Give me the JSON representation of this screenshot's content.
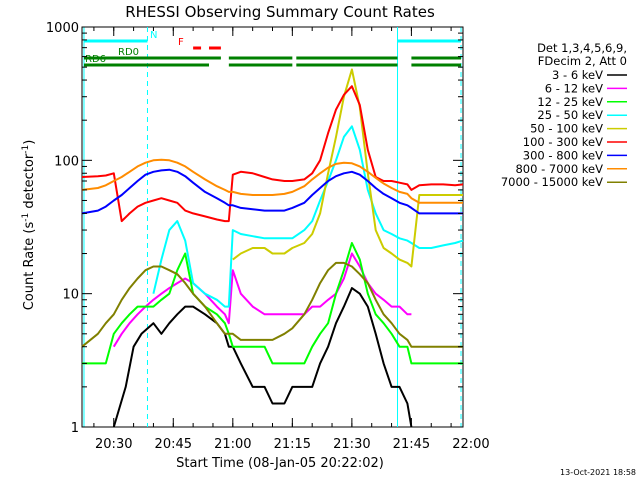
{
  "chart_data": {
    "type": "line",
    "title": "RHESSI Observing Summary Count Rates",
    "xlabel": "Start Time (08-Jan-05 20:22:02)",
    "ylabel_main": "Count Rate (s",
    "ylabel_sup1": "-1",
    "ylabel_mid": " detector",
    "ylabel_sup2": "-1",
    "ylabel_end": ")",
    "x_unit": "minutes after 20:00 UT",
    "xlim": [
      22.0,
      118.0
    ],
    "ylim": [
      1,
      1000
    ],
    "yscale": "log",
    "x_ticks": [
      {
        "label": "20:30",
        "x": 30
      },
      {
        "label": "20:45",
        "x": 45
      },
      {
        "label": "21:00",
        "x": 60
      },
      {
        "label": "21:15",
        "x": 75
      },
      {
        "label": "21:30",
        "x": 90
      },
      {
        "label": "21:45",
        "x": 105
      },
      {
        "label": "22:00",
        "x": 120
      }
    ],
    "y_ticks": [
      {
        "label": "1",
        "y": 1
      },
      {
        "label": "10",
        "y": 10
      },
      {
        "label": "100",
        "y": 100
      },
      {
        "label": "1000",
        "y": 1000
      }
    ],
    "legend": {
      "header1": "Det 1,3,4,5,6,9,",
      "header2": "FDecim 2, Att 0",
      "placement": "right"
    },
    "series": [
      {
        "name": "3 - 6 keV",
        "color": "#000000",
        "x": [
          22,
          26,
          28,
          30,
          33,
          35,
          37,
          40,
          42,
          44,
          46,
          48,
          50,
          53,
          56,
          58,
          59,
          60,
          62,
          65,
          68,
          70,
          73,
          75,
          78,
          80,
          82,
          84,
          86,
          88,
          90,
          92,
          94,
          96,
          98,
          100,
          102,
          104,
          105,
          107,
          110,
          113,
          116,
          118
        ],
        "y": [
          0,
          0,
          0,
          1,
          2,
          4,
          5,
          6,
          5,
          6,
          7,
          8,
          8,
          7,
          6,
          5,
          4,
          4,
          3,
          2,
          2,
          1.5,
          1.5,
          2,
          2,
          2,
          3,
          4,
          6,
          8,
          11,
          10,
          8,
          5,
          3,
          2,
          2,
          1.5,
          1,
          0,
          0,
          0,
          0,
          0
        ]
      },
      {
        "name": "6 - 12 keV",
        "color": "#ff00ff",
        "x": [
          22,
          26,
          28,
          30,
          32,
          34,
          36,
          38,
          40,
          42,
          44,
          46,
          48,
          50,
          53,
          56,
          58,
          59,
          60,
          62,
          65,
          68,
          70,
          73,
          75,
          78,
          80,
          82,
          84,
          86,
          88,
          90,
          92,
          94,
          96,
          98,
          100,
          102,
          104,
          105,
          107,
          110,
          113,
          116,
          118
        ],
        "y": [
          0,
          0,
          0,
          4,
          5,
          6,
          7,
          8,
          9,
          10,
          11,
          12,
          13,
          12,
          10,
          8,
          7,
          6,
          15,
          10,
          8,
          7,
          7,
          7,
          7,
          7,
          8,
          8,
          9,
          10,
          13,
          20,
          16,
          12,
          10,
          9,
          8,
          8,
          7,
          7,
          0,
          0,
          0,
          0,
          0
        ]
      },
      {
        "name": "12 - 25 keV",
        "color": "#00ff00",
        "x": [
          22,
          26,
          28,
          30,
          32,
          34,
          36,
          38,
          40,
          42,
          44,
          46,
          48,
          50,
          53,
          56,
          58,
          59,
          60,
          62,
          65,
          68,
          70,
          73,
          75,
          78,
          80,
          82,
          84,
          86,
          88,
          90,
          92,
          94,
          96,
          98,
          100,
          102,
          104,
          105,
          107,
          110,
          113,
          116,
          118
        ],
        "y": [
          3,
          3,
          3,
          5,
          6,
          7,
          8,
          8,
          8,
          9,
          10,
          15,
          20,
          10,
          8,
          7,
          6,
          5,
          4,
          4,
          4,
          4,
          3,
          3,
          3,
          3,
          4,
          5,
          6,
          10,
          15,
          24,
          18,
          10,
          7,
          6,
          5,
          4,
          4,
          3,
          3,
          3,
          3,
          3,
          3
        ]
      },
      {
        "name": "25 - 50 keV",
        "color": "#00ffff",
        "x": [
          22,
          26,
          28,
          30,
          32,
          34,
          36,
          38,
          40,
          42,
          44,
          46,
          48,
          50,
          53,
          56,
          58,
          59,
          60,
          62,
          65,
          68,
          70,
          73,
          75,
          78,
          80,
          82,
          84,
          86,
          88,
          90,
          92,
          94,
          96,
          98,
          100,
          102,
          104,
          105,
          107,
          110,
          113,
          116,
          118
        ],
        "y": [
          0,
          0,
          0,
          0,
          0,
          0,
          0,
          0,
          10,
          18,
          30,
          35,
          25,
          12,
          10,
          9,
          8,
          8,
          30,
          28,
          27,
          26,
          26,
          26,
          26,
          30,
          35,
          50,
          70,
          100,
          150,
          180,
          120,
          60,
          40,
          30,
          28,
          26,
          25,
          24,
          22,
          22,
          23,
          24,
          25
        ]
      },
      {
        "name": "50 - 100 keV",
        "color": "#cccc00",
        "x": [
          22,
          26,
          28,
          30,
          32,
          34,
          36,
          38,
          40,
          42,
          44,
          46,
          48,
          50,
          53,
          56,
          58,
          59,
          60,
          62,
          65,
          68,
          70,
          73,
          75,
          78,
          80,
          82,
          84,
          86,
          88,
          90,
          92,
          94,
          96,
          98,
          100,
          102,
          104,
          105,
          107,
          110,
          113,
          116,
          118
        ],
        "y": [
          0,
          0,
          0,
          0,
          0,
          0,
          0,
          0,
          0,
          0,
          0,
          0,
          0,
          0,
          0,
          0,
          0,
          0,
          18,
          20,
          22,
          22,
          20,
          20,
          22,
          24,
          28,
          40,
          80,
          150,
          300,
          480,
          250,
          80,
          30,
          22,
          20,
          18,
          17,
          16,
          55,
          55,
          55,
          55,
          55
        ]
      },
      {
        "name": "100 - 300 keV",
        "color": "#ff0000",
        "x": [
          22,
          26,
          28,
          30,
          32,
          34,
          36,
          38,
          40,
          42,
          44,
          46,
          48,
          50,
          53,
          56,
          58,
          59,
          60,
          62,
          65,
          68,
          70,
          73,
          75,
          78,
          80,
          82,
          84,
          86,
          88,
          90,
          92,
          94,
          96,
          98,
          100,
          102,
          104,
          105,
          107,
          110,
          113,
          116,
          118
        ],
        "y": [
          75,
          76,
          77,
          80,
          35,
          40,
          45,
          48,
          50,
          52,
          50,
          48,
          42,
          40,
          38,
          36,
          35,
          35,
          78,
          82,
          80,
          75,
          72,
          70,
          70,
          72,
          80,
          100,
          160,
          240,
          310,
          360,
          260,
          120,
          75,
          70,
          70,
          68,
          66,
          60,
          65,
          66,
          66,
          65,
          66
        ]
      },
      {
        "name": "300 - 800 keV",
        "color": "#0000ff",
        "x": [
          22,
          26,
          28,
          30,
          32,
          34,
          36,
          38,
          40,
          42,
          44,
          46,
          48,
          50,
          53,
          56,
          58,
          59,
          60,
          62,
          65,
          68,
          70,
          73,
          75,
          78,
          80,
          82,
          84,
          86,
          88,
          90,
          92,
          94,
          96,
          98,
          100,
          102,
          104,
          105,
          107,
          110,
          113,
          116,
          118
        ],
        "y": [
          40,
          42,
          45,
          50,
          55,
          62,
          70,
          78,
          82,
          84,
          85,
          82,
          76,
          68,
          58,
          52,
          48,
          46,
          46,
          44,
          43,
          42,
          42,
          42,
          44,
          48,
          55,
          62,
          70,
          76,
          80,
          82,
          78,
          70,
          62,
          56,
          52,
          48,
          46,
          44,
          40,
          40,
          40,
          40,
          40
        ]
      },
      {
        "name": "800 - 7000 keV",
        "color": "#ff8c00",
        "x": [
          22,
          26,
          28,
          30,
          32,
          34,
          36,
          38,
          40,
          42,
          44,
          46,
          48,
          50,
          53,
          56,
          58,
          59,
          60,
          62,
          65,
          68,
          70,
          73,
          75,
          78,
          80,
          82,
          84,
          86,
          88,
          90,
          92,
          94,
          96,
          98,
          100,
          102,
          104,
          105,
          107,
          110,
          113,
          116,
          118
        ],
        "y": [
          60,
          62,
          65,
          70,
          75,
          82,
          90,
          96,
          100,
          101,
          100,
          96,
          90,
          82,
          72,
          64,
          60,
          58,
          58,
          56,
          55,
          55,
          55,
          56,
          58,
          64,
          72,
          80,
          88,
          94,
          96,
          95,
          90,
          82,
          74,
          67,
          62,
          58,
          56,
          52,
          48,
          48,
          48,
          48,
          48
        ]
      },
      {
        "name": "7000 - 15000 keV",
        "color": "#808000",
        "x": [
          22,
          26,
          28,
          30,
          32,
          34,
          36,
          38,
          40,
          42,
          44,
          46,
          48,
          50,
          53,
          56,
          58,
          59,
          60,
          62,
          65,
          68,
          70,
          73,
          75,
          78,
          80,
          82,
          84,
          86,
          88,
          90,
          92,
          94,
          96,
          98,
          100,
          102,
          104,
          105,
          107,
          110,
          113,
          116,
          118
        ],
        "y": [
          4,
          5,
          6,
          7,
          9,
          11,
          13,
          15,
          16,
          16,
          15,
          14,
          12,
          10,
          8,
          6,
          5,
          5,
          5,
          4.5,
          4.5,
          4.5,
          4.5,
          5,
          5.5,
          7,
          9,
          12,
          15,
          17,
          17,
          16,
          14,
          12,
          9,
          7,
          6,
          5,
          4.5,
          4,
          4,
          4,
          4,
          4,
          4
        ]
      }
    ],
    "flag_bars": [
      {
        "label": "N",
        "color": "#00ffff",
        "segments": [
          [
            22.5,
            38.5
          ],
          [
            101.5,
            117.5
          ]
        ],
        "level": 0
      },
      {
        "label": "F",
        "color": "#ff0000",
        "segments": [
          [
            50,
            52
          ],
          [
            54,
            57
          ]
        ],
        "level": 1
      },
      {
        "label": "RD0",
        "color": "#008000",
        "segments": [
          [
            22.5,
            57
          ],
          [
            59,
            75
          ],
          [
            76,
            101.5
          ],
          [
            105,
            117.5
          ]
        ],
        "level": 2
      },
      {
        "label": "RD6",
        "color": "#008000",
        "segments": [
          [
            22.5,
            54
          ],
          [
            59,
            75
          ],
          [
            76,
            101.5
          ],
          [
            105,
            117.5
          ]
        ],
        "level": 3
      }
    ],
    "vlines": [
      {
        "x": 22.5,
        "style": "solid",
        "color": "#00ffff"
      },
      {
        "x": 38.5,
        "style": "dashed",
        "color": "#00ffff"
      },
      {
        "x": 101.5,
        "style": "solid",
        "color": "#00ffff"
      },
      {
        "x": 117.5,
        "style": "dashed",
        "color": "#00ffff"
      }
    ],
    "annotation": "13-Oct-2021 18:58"
  }
}
